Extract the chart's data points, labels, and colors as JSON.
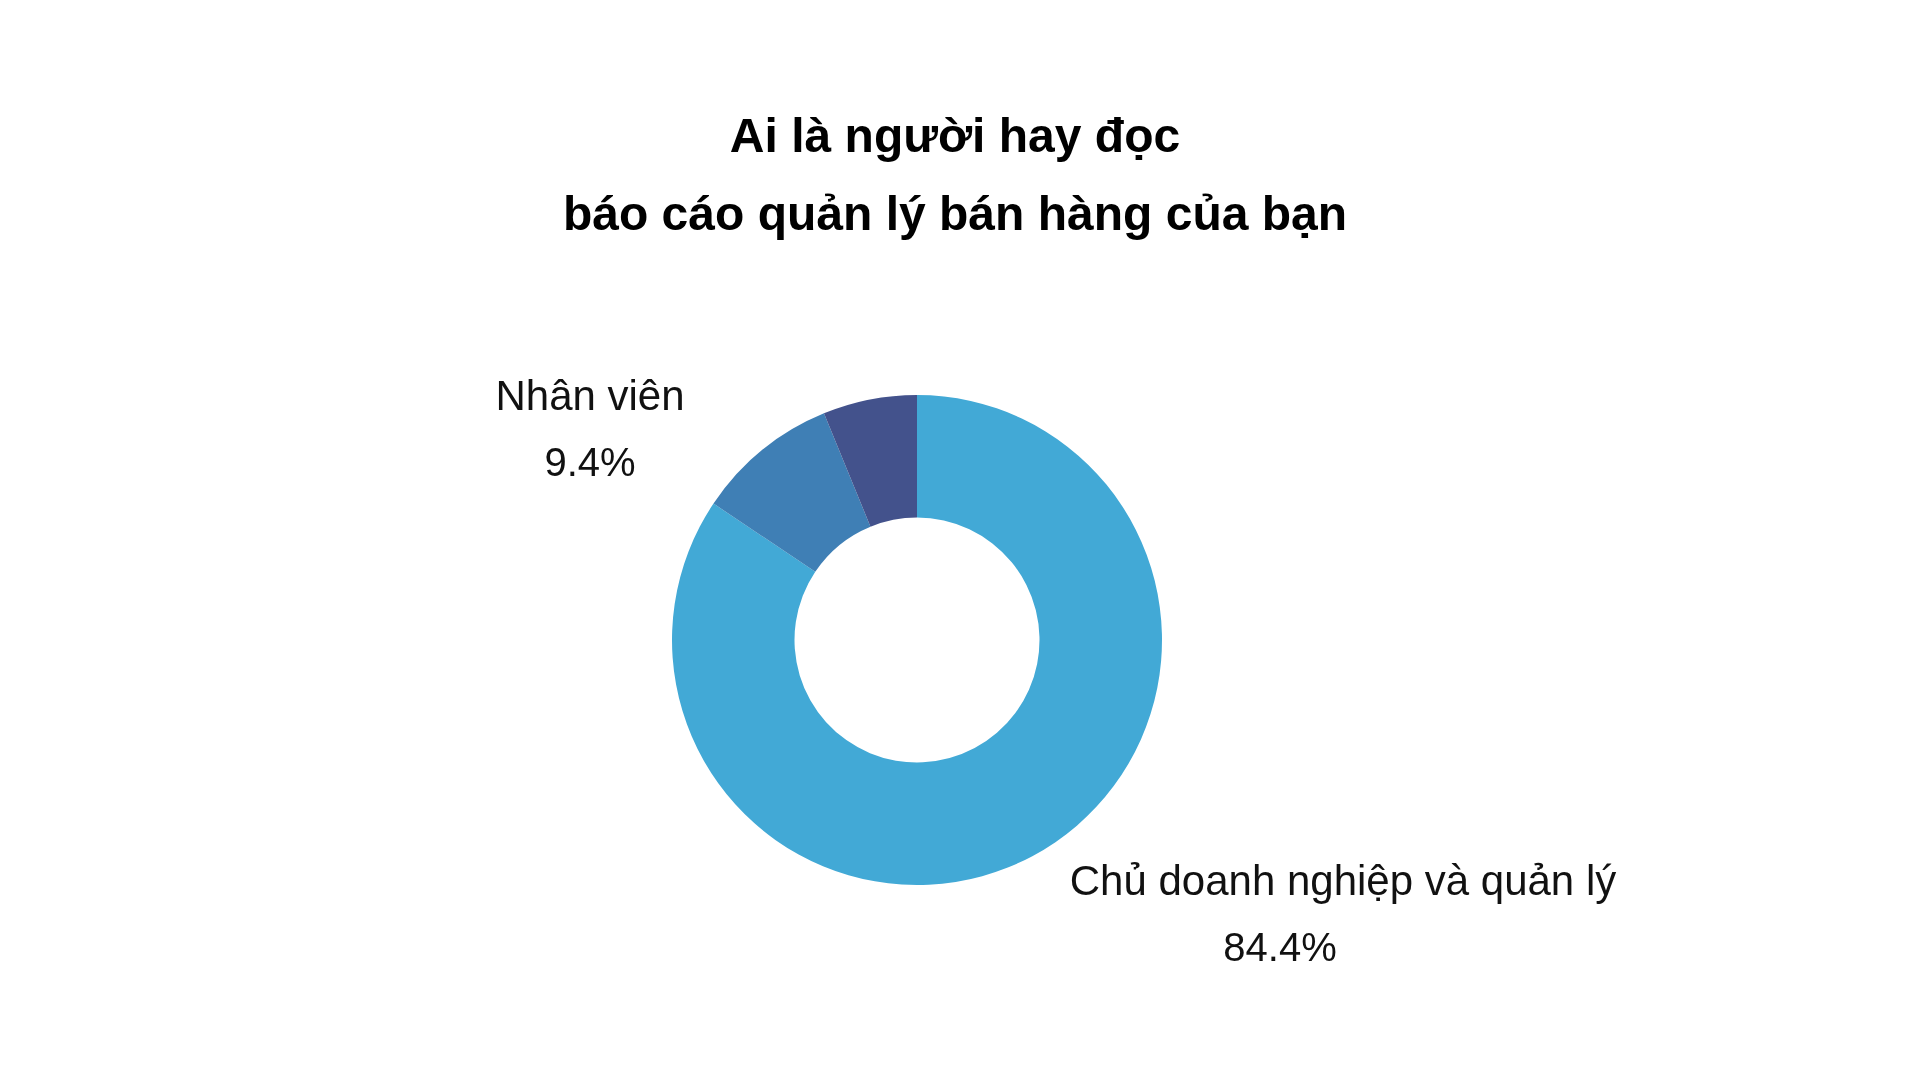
{
  "chart_data": {
    "type": "donut",
    "title": "Ai là người hay đọc\nbáo cáo quản lý bán hàng của bạn",
    "categories": [
      "Chủ doanh nghiệp và quản lý",
      "Nhân viên",
      null
    ],
    "values": [
      84.4,
      9.4,
      6.2
    ],
    "colors": [
      "#42a9d6",
      "#3f7fb5",
      "#43528c"
    ],
    "value_labels": [
      "84.4%",
      "9.4%",
      null
    ]
  }
}
